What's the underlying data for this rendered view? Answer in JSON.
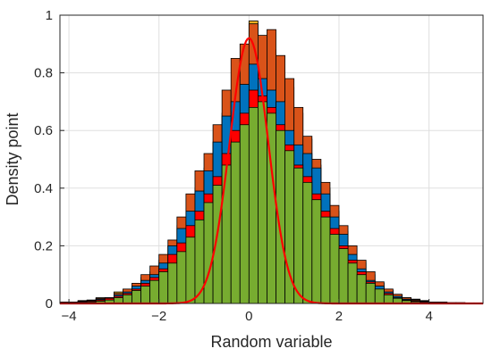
{
  "chart_data": {
    "type": "bar",
    "subtype": "overlaid histograms with normal density curve",
    "xlabel": "Random variable",
    "ylabel": "Density point",
    "xlim": [
      -4.2,
      5.2
    ],
    "ylim": [
      0,
      1
    ],
    "xticks": [
      -4,
      -2,
      0,
      2,
      4
    ],
    "yticks": [
      0,
      0.2,
      0.4,
      0.6,
      0.8,
      1
    ],
    "xtick_labels": [
      "−4",
      "−2",
      "0",
      "2",
      "4"
    ],
    "ytick_labels": [
      "0",
      "0.2",
      "0.4",
      "0.6",
      "0.8",
      "1"
    ],
    "grid": true,
    "bin_width": 0.2,
    "bin_start": -4.2,
    "series": [
      {
        "color": "#edb120",
        "values": [
          0.005,
          0.005,
          0.01,
          0.012,
          0.02,
          0.015,
          0.04,
          0.045,
          0.06,
          0.09,
          0.11,
          0.15,
          0.2,
          0.27,
          0.33,
          0.4,
          0.47,
          0.56,
          0.66,
          0.74,
          0.83,
          0.98,
          0.92,
          0.88,
          0.82,
          0.75,
          0.66,
          0.57,
          0.48,
          0.4,
          0.32,
          0.25,
          0.19,
          0.14,
          0.1,
          0.07,
          0.045,
          0.03,
          0.02,
          0.015,
          0.01,
          0.005,
          0.005,
          0.003,
          0.003,
          0.002,
          0.002
        ]
      },
      {
        "color": "#d95319",
        "values": [
          0.004,
          0.004,
          0.008,
          0.01,
          0.018,
          0.02,
          0.035,
          0.05,
          0.07,
          0.1,
          0.13,
          0.17,
          0.22,
          0.3,
          0.38,
          0.46,
          0.52,
          0.62,
          0.74,
          0.85,
          0.9,
          0.97,
          0.93,
          0.95,
          0.86,
          0.78,
          0.68,
          0.58,
          0.5,
          0.42,
          0.34,
          0.27,
          0.2,
          0.15,
          0.11,
          0.075,
          0.05,
          0.032,
          0.02,
          0.013,
          0.008,
          0.004,
          0.004,
          0.002,
          0.002,
          0.001,
          0.001
        ]
      },
      {
        "color": "#0072bd",
        "values": [
          0.003,
          0.003,
          0.006,
          0.01,
          0.015,
          0.02,
          0.03,
          0.04,
          0.06,
          0.08,
          0.1,
          0.14,
          0.2,
          0.26,
          0.32,
          0.39,
          0.46,
          0.56,
          0.65,
          0.7,
          0.76,
          0.83,
          0.78,
          0.74,
          0.7,
          0.6,
          0.55,
          0.52,
          0.47,
          0.38,
          0.3,
          0.24,
          0.17,
          0.12,
          0.08,
          0.06,
          0.04,
          0.025,
          0.015,
          0.01,
          0.007,
          0.004,
          0.003,
          0.002,
          0.002,
          0.001,
          0.001
        ]
      },
      {
        "color": "#ff0000",
        "values": [
          0.002,
          0.002,
          0.004,
          0.008,
          0.012,
          0.018,
          0.025,
          0.035,
          0.05,
          0.07,
          0.09,
          0.12,
          0.17,
          0.21,
          0.27,
          0.32,
          0.38,
          0.44,
          0.52,
          0.6,
          0.66,
          0.74,
          0.72,
          0.68,
          0.62,
          0.55,
          0.48,
          0.44,
          0.38,
          0.32,
          0.26,
          0.2,
          0.15,
          0.11,
          0.075,
          0.05,
          0.035,
          0.02,
          0.012,
          0.008,
          0.005,
          0.003,
          0.002,
          0.001,
          0.001,
          0.001,
          0.001
        ]
      },
      {
        "color": "#77ac30",
        "values": [
          0.001,
          0.001,
          0.003,
          0.005,
          0.008,
          0.012,
          0.02,
          0.03,
          0.045,
          0.06,
          0.08,
          0.11,
          0.14,
          0.18,
          0.23,
          0.29,
          0.35,
          0.41,
          0.48,
          0.56,
          0.62,
          0.68,
          0.7,
          0.66,
          0.6,
          0.53,
          0.47,
          0.42,
          0.36,
          0.3,
          0.24,
          0.19,
          0.14,
          0.1,
          0.07,
          0.05,
          0.03,
          0.018,
          0.01,
          0.006,
          0.004,
          0.002,
          0.001,
          0.001,
          0.001,
          0.001,
          0.0005
        ]
      }
    ],
    "curve": {
      "type": "normal-pdf",
      "mean": 0,
      "sd": 0.43,
      "peak": 0.92,
      "color": "#ff0000"
    }
  }
}
